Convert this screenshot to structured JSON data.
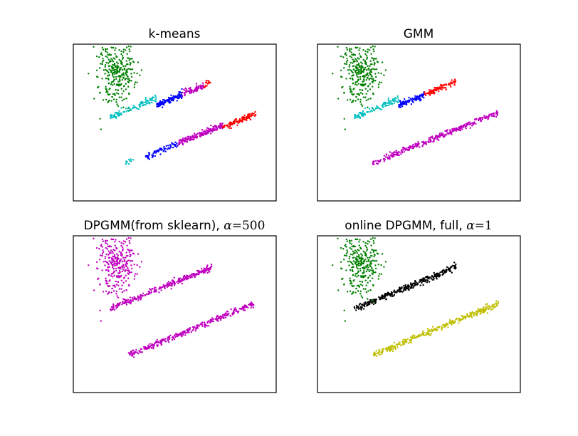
{
  "chart_data": [
    {
      "type": "scatter",
      "title": "k-means",
      "clusters": [
        {
          "color": "#008000",
          "blobs": [
            {
              "kind": "gauss",
              "cx": -3.2,
              "cy": 4.6,
              "sx": 0.55,
              "sy": 1.05,
              "n": 320
            }
          ]
        },
        {
          "color": "#00bfbf",
          "blobs": [
            {
              "kind": "line",
              "x0": -3.5,
              "x1": -1.0,
              "y0": 1.85,
              "dy": 0.48,
              "w": 0.1,
              "n": 110
            },
            {
              "kind": "line",
              "x0": -2.7,
              "x1": -2.2,
              "y0": -1.1,
              "dy": 0.48,
              "w": 0.1,
              "n": 10
            }
          ]
        },
        {
          "color": "#0000ff",
          "blobs": [
            {
              "kind": "line",
              "x0": -1.0,
              "x1": 0.4,
              "y0": 2.6,
              "dy": 0.48,
              "w": 0.1,
              "n": 120
            },
            {
              "kind": "line",
              "x0": -1.6,
              "x1": 0.2,
              "y0": -0.7,
              "dy": 0.48,
              "w": 0.1,
              "n": 70
            }
          ]
        },
        {
          "color": "#bf00bf",
          "blobs": [
            {
              "kind": "line",
              "x0": 0.4,
              "x1": 1.6,
              "y0": 3.3,
              "dy": 0.48,
              "w": 0.1,
              "n": 70
            },
            {
              "kind": "line",
              "x0": 0.2,
              "x1": 2.6,
              "y0": 0.2,
              "dy": 0.48,
              "w": 0.1,
              "n": 190
            }
          ]
        },
        {
          "color": "#ff0000",
          "blobs": [
            {
              "kind": "line",
              "x0": 1.6,
              "x1": 2.0,
              "y0": 3.9,
              "dy": 0.48,
              "w": 0.1,
              "n": 15
            },
            {
              "kind": "line",
              "x0": 2.6,
              "x1": 4.4,
              "y0": 1.2,
              "dy": 0.48,
              "w": 0.1,
              "n": 100
            }
          ]
        }
      ],
      "xlim": [
        -5.5,
        5.5
      ],
      "ylim": [
        -3.5,
        6.5
      ],
      "axes_ticks": "none",
      "grid": false
    },
    {
      "type": "scatter",
      "title": "GMM",
      "clusters": [
        {
          "color": "#008000",
          "blobs": [
            {
              "kind": "gauss",
              "cx": -3.2,
              "cy": 4.6,
              "sx": 0.55,
              "sy": 1.05,
              "n": 320
            }
          ]
        },
        {
          "color": "#00bfbf",
          "blobs": [
            {
              "kind": "line",
              "x0": -3.5,
              "x1": -1.1,
              "y0": 1.85,
              "dy": 0.48,
              "w": 0.1,
              "n": 110
            }
          ]
        },
        {
          "color": "#0000ff",
          "blobs": [
            {
              "kind": "line",
              "x0": -1.1,
              "x1": 0.3,
              "y0": 2.6,
              "dy": 0.48,
              "w": 0.1,
              "n": 110
            }
          ]
        },
        {
          "color": "#ff0000",
          "blobs": [
            {
              "kind": "line",
              "x0": 0.3,
              "x1": 2.0,
              "y0": 3.3,
              "dy": 0.48,
              "w": 0.1,
              "n": 90
            }
          ]
        },
        {
          "color": "#bf00bf",
          "blobs": [
            {
              "kind": "line",
              "x0": -2.5,
              "x1": 4.3,
              "y0": -1.1,
              "dy": 0.48,
              "w": 0.1,
              "n": 330
            }
          ]
        }
      ],
      "xlim": [
        -5.5,
        5.5
      ],
      "ylim": [
        -3.5,
        6.5
      ],
      "axes_ticks": "none",
      "grid": false
    },
    {
      "type": "scatter",
      "title": "DPGMM(from sklearn), ",
      "title_math": {
        "symbol": "α",
        "eq": "=",
        "value": "500"
      },
      "clusters": [
        {
          "color": "#bf00bf",
          "blobs": [
            {
              "kind": "gauss",
              "cx": -3.2,
              "cy": 4.6,
              "sx": 0.55,
              "sy": 1.05,
              "n": 320
            },
            {
              "kind": "line",
              "x0": -3.5,
              "x1": 2.0,
              "y0": 1.85,
              "dy": 0.48,
              "w": 0.1,
              "n": 310
            },
            {
              "kind": "line",
              "x0": -2.5,
              "x1": 4.3,
              "y0": -1.1,
              "dy": 0.48,
              "w": 0.1,
              "n": 330
            }
          ]
        }
      ],
      "xlim": [
        -5.5,
        5.5
      ],
      "ylim": [
        -3.5,
        6.5
      ],
      "axes_ticks": "none",
      "grid": false
    },
    {
      "type": "scatter",
      "title": "online DPGMM, full, ",
      "title_math": {
        "symbol": "α",
        "eq": "=",
        "value": "1"
      },
      "clusters": [
        {
          "color": "#008000",
          "blobs": [
            {
              "kind": "gauss",
              "cx": -3.2,
              "cy": 4.6,
              "sx": 0.55,
              "sy": 1.05,
              "n": 320
            }
          ]
        },
        {
          "color": "#000000",
          "blobs": [
            {
              "kind": "line",
              "x0": -3.5,
              "x1": 2.0,
              "y0": 1.85,
              "dy": 0.48,
              "w": 0.1,
              "n": 310
            }
          ]
        },
        {
          "color": "#bfbf00",
          "blobs": [
            {
              "kind": "line",
              "x0": -2.5,
              "x1": 4.3,
              "y0": -1.1,
              "dy": 0.48,
              "w": 0.1,
              "n": 330
            }
          ]
        }
      ],
      "xlim": [
        -5.5,
        5.5
      ],
      "ylim": [
        -3.5,
        6.5
      ],
      "axes_ticks": "none",
      "grid": false
    }
  ]
}
